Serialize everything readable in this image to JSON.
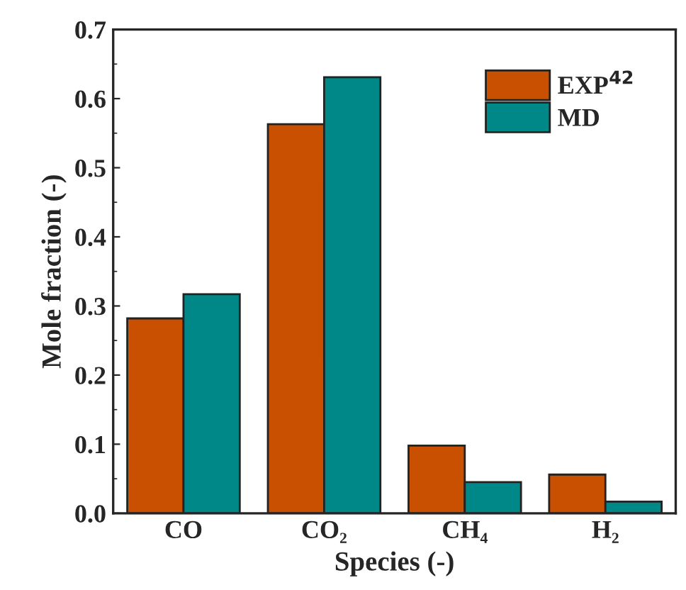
{
  "chart_data": {
    "type": "bar",
    "xlabel": "Species (-)",
    "ylabel": "Mole fraction (-)",
    "categories": [
      "CO",
      "CO₂",
      "CH₄",
      "H₂"
    ],
    "series": [
      {
        "name": "EXP$^{42}$",
        "color": "#c85000",
        "values": [
          0.282,
          0.563,
          0.098,
          0.056
        ]
      },
      {
        "name": "MD",
        "color": "#008888",
        "values": [
          0.317,
          0.631,
          0.045,
          0.017
        ]
      }
    ],
    "ylim": [
      0,
      0.7
    ],
    "yticks": [
      {
        "value": 0,
        "label": "0.0"
      },
      0.1,
      0.2,
      0.3,
      0.4,
      0.5,
      0.6,
      0.7
    ],
    "grid": false,
    "legend": "top right"
  }
}
